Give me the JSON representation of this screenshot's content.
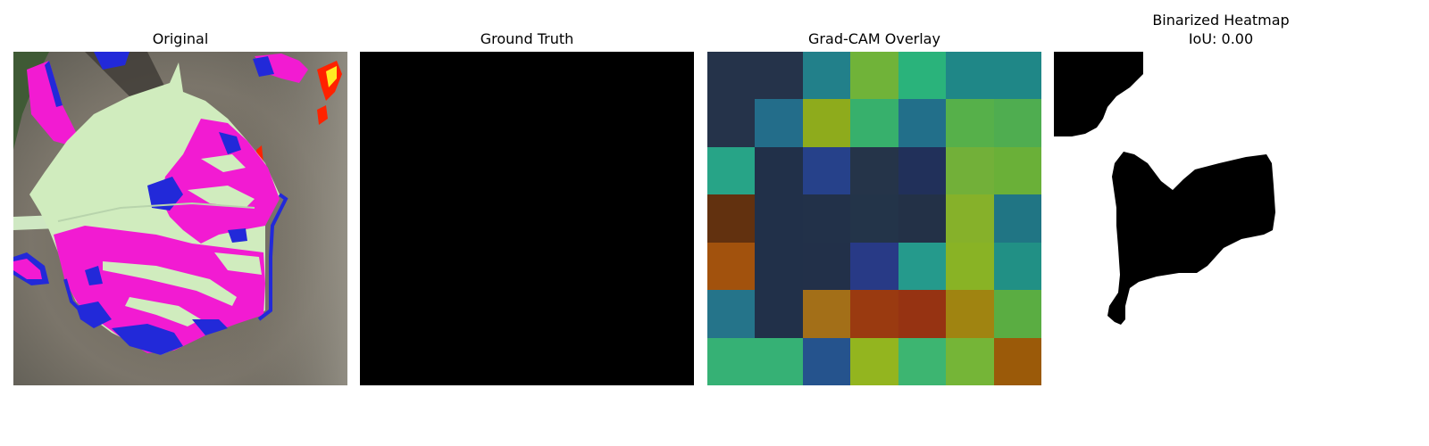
{
  "panels": {
    "original": {
      "title": "Original"
    },
    "ground_truth": {
      "title": "Ground Truth",
      "fill": "#000000"
    },
    "gradcam": {
      "title": "Grad-CAM Overlay",
      "cells": [
        [
          "#25334a",
          "#25334a",
          "#22808a",
          "#70b339",
          "#2ab37b",
          "#1f8787",
          "#1f8787"
        ],
        [
          "#25334a",
          "#236d8a",
          "#8eab1c",
          "#37b06c",
          "#226f8a",
          "#56b04a",
          "#4fad50"
        ],
        [
          "#27a487",
          "#213049",
          "#26418a",
          "#253449",
          "#21305a",
          "#72b039",
          "#6ab038"
        ],
        [
          "#62310f",
          "#213049",
          "#223149",
          "#233449",
          "#233147",
          "#86b12a",
          "#207584"
        ],
        [
          "#a2520d",
          "#213049",
          "#223049",
          "#283a86",
          "#259a8c",
          "#89b325",
          "#219085"
        ],
        [
          "#25748a",
          "#213049",
          "#a36f18",
          "#9a3a10",
          "#963312",
          "#a08411",
          "#5aad42"
        ],
        [
          "#36b175",
          "#36b175",
          "#25538d",
          "#93b51f",
          "#3db571",
          "#75b537",
          "#9b5a09"
        ]
      ]
    },
    "binarized": {
      "title_line1": "Binarized Heatmap",
      "title_line2": "IoU: 0.00"
    }
  },
  "colors": {
    "leaf_light": "#d0ecbe",
    "leaf_magenta": "#f21bd2",
    "leaf_blue": "#2229d9",
    "background_gray": "#6f6a60",
    "hot_red": "#ff2200",
    "hot_yellow": "#ffee22"
  }
}
